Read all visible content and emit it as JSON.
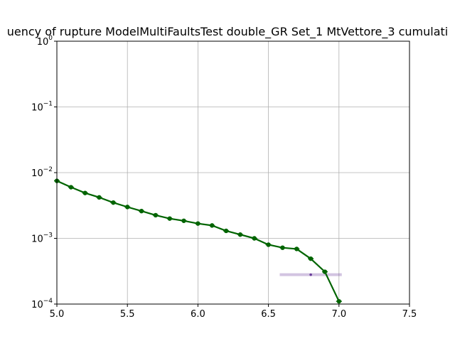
{
  "chart_data": {
    "type": "line",
    "title": "uency of rupture ModelMultiFaultsTest double_GR Set_1 MtVettore_3 cumulati",
    "xlabel": "",
    "ylabel": "",
    "xlim": [
      5.0,
      7.5
    ],
    "ylim": [
      0.0001,
      1
    ],
    "yscale": "log",
    "grid": true,
    "x_ticks": [
      5.0,
      5.5,
      6.0,
      6.5,
      7.0,
      7.5
    ],
    "x_tick_labels": [
      "5.0",
      "5.5",
      "6.0",
      "6.5",
      "7.0",
      "7.5"
    ],
    "y_ticks": [
      0.0001,
      0.001,
      0.01,
      0.1,
      1
    ],
    "y_tick_labels": [
      {
        "base": "10",
        "exp": "−4"
      },
      {
        "base": "10",
        "exp": "−3"
      },
      {
        "base": "10",
        "exp": "−2"
      },
      {
        "base": "10",
        "exp": "−1"
      },
      {
        "base": "10",
        "exp": "0"
      }
    ],
    "series": [
      {
        "color": "#006400",
        "x": [
          5.0,
          5.1,
          5.2,
          5.3,
          5.4,
          5.5,
          5.6,
          5.7,
          5.8,
          5.9,
          6.0,
          6.1,
          6.2,
          6.3,
          6.4,
          6.5,
          6.6,
          6.7,
          6.8,
          6.9,
          7.0
        ],
        "y": [
          0.0075,
          0.006,
          0.0049,
          0.0042,
          0.0035,
          0.003,
          0.0026,
          0.00225,
          0.002,
          0.00185,
          0.00168,
          0.00157,
          0.0013,
          0.00114,
          0.001,
          0.0008,
          0.00072,
          0.00069,
          0.00049,
          0.00031,
          0.00011
        ]
      }
    ],
    "observation": {
      "color": "#6a3d9a",
      "x": 6.8,
      "y": 0.00028,
      "x_err": [
        6.58,
        7.02
      ]
    }
  }
}
